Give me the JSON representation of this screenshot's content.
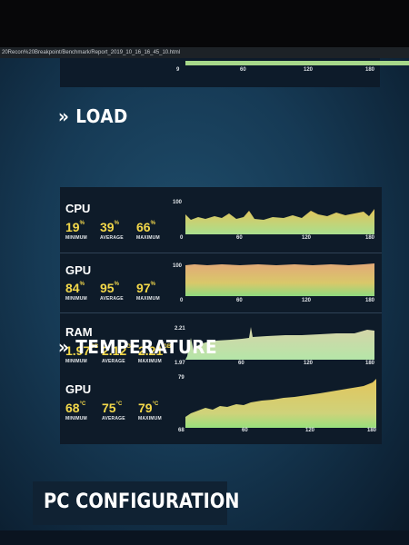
{
  "browser": {
    "url": "20Recon%20Breakpoint/Benchmark/Report_2019_10_16_16_45_10.html"
  },
  "top_chart": {
    "x_ticks": [
      "9",
      "60",
      "120",
      "180"
    ]
  },
  "load": {
    "title": "» LOAD",
    "rows": [
      {
        "label": "CPU",
        "minimum": "19",
        "average": "39",
        "maximum": "66",
        "unit": "%",
        "y_top": "100",
        "y_bottom": "0",
        "x_ticks": [
          "60",
          "120",
          "180"
        ]
      },
      {
        "label": "GPU",
        "minimum": "84",
        "average": "95",
        "maximum": "97",
        "unit": "%",
        "y_top": "100",
        "y_bottom": "0",
        "x_ticks": [
          "60",
          "120",
          "180"
        ]
      },
      {
        "label": "RAM",
        "minimum": "1.97",
        "average": "2.12",
        "maximum": "2.21",
        "unit": "GB",
        "y_top": "2.21",
        "y_bottom": "1.97",
        "x_ticks": [
          "60",
          "120",
          "180"
        ]
      }
    ]
  },
  "temperature": {
    "title": "» TEMPERATURE",
    "rows": [
      {
        "label": "GPU",
        "minimum": "68",
        "average": "75",
        "maximum": "79",
        "unit": "°C",
        "y_top": "79",
        "y_bottom": "68",
        "x_ticks": [
          "60",
          "120",
          "180"
        ]
      }
    ]
  },
  "stat_names": {
    "minimum": "MINIMUM",
    "average": "AVERAGE",
    "maximum": "MAXIMUM"
  },
  "config": {
    "title": "PC CONFIGURATION"
  },
  "colors": {
    "value": "#f3d84a",
    "chart_top": "#e7c85a",
    "chart_bottom": "#a6e08c",
    "panel": "#0e1b29"
  }
}
